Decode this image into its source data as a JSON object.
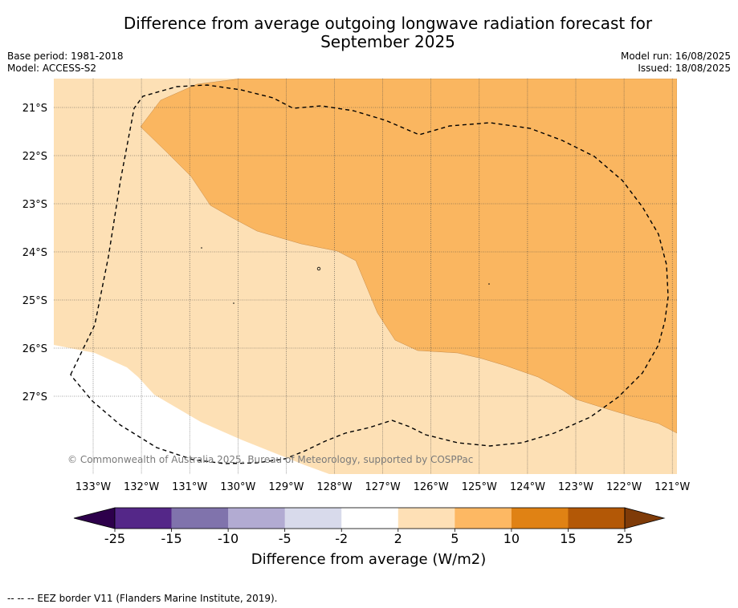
{
  "title_line1": "Difference from average outgoing longwave radiation forecast for",
  "title_line2": "September 2025",
  "meta": {
    "base_period": "Base period: 1981-2018",
    "model": "Model: ACCESS-S2",
    "model_run": "Model run: 16/08/2025",
    "issued": "Issued: 18/08/2025"
  },
  "map": {
    "lat_labels": [
      "21°S",
      "22°S",
      "23°S",
      "24°S",
      "25°S",
      "26°S",
      "27°S"
    ],
    "lon_labels": [
      "133°W",
      "132°W",
      "131°W",
      "130°W",
      "129°W",
      "128°W",
      "127°W",
      "126°W",
      "125°W",
      "124°W",
      "123°W",
      "122°W",
      "121°W"
    ],
    "copyright": "© Commonwealth of Australia 2025, Bureau of Meteorology, supported by COSPPac",
    "region_colors": {
      "2 to 5": "#fde0b5",
      "5 to 10": "#fab660",
      "-2 to 2": "#ffffff"
    }
  },
  "colorbar": {
    "ticks": [
      "-25",
      "-15",
      "-10",
      "-5",
      "-2",
      "2",
      "5",
      "10",
      "15",
      "25"
    ],
    "colors": [
      "#542788",
      "#8073ac",
      "#b2abd2",
      "#d8daeb",
      "#ffffff",
      "#fee0b6",
      "#fdb863",
      "#e08214",
      "#b35806"
    ],
    "under_color": "#2d004b",
    "over_color": "#7f3b08",
    "label": "Difference from average (W/m2)"
  },
  "footnote": "--  --  -- EEZ border V11 (Flanders Marine Institute, 2019)."
}
